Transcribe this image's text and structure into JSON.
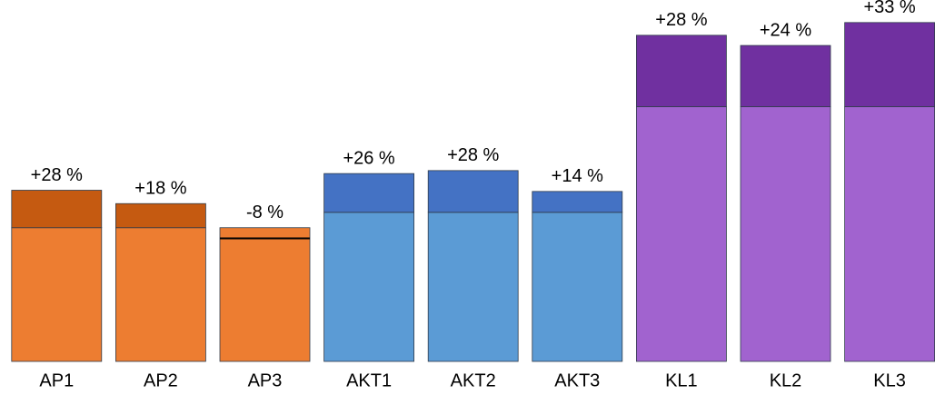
{
  "chart_data": {
    "type": "bar",
    "categories": [
      "AP1",
      "AP2",
      "AP3",
      "AKT1",
      "AKT2",
      "AKT3",
      "KL1",
      "KL2",
      "KL3"
    ],
    "ylim": [
      0,
      400
    ],
    "series": [
      {
        "values": [
          148,
          148,
          148,
          165,
          165,
          165,
          282,
          282,
          282
        ],
        "colors": [
          "#ed7d31",
          "#ed7d31",
          "#ed7d31",
          "#5b9bd5",
          "#5b9bd5",
          "#5b9bd5",
          "#a163cf",
          "#a163cf",
          "#a163cf"
        ]
      },
      {
        "values": [
          28,
          18,
          -8,
          26,
          28,
          14,
          28,
          24,
          33
        ],
        "value_labels": [
          "+28 %",
          "+18 %",
          "-8 %",
          "+26 %",
          "+28 %",
          "+14 %",
          "+28 %",
          "+24 %",
          "+33 %"
        ],
        "colors": [
          "#c55a11",
          "#c55a11",
          "#c55a11",
          "#4472c4",
          "#4472c4",
          "#4472c4",
          "#7030a0",
          "#7030a0",
          "#7030a0"
        ]
      }
    ]
  }
}
